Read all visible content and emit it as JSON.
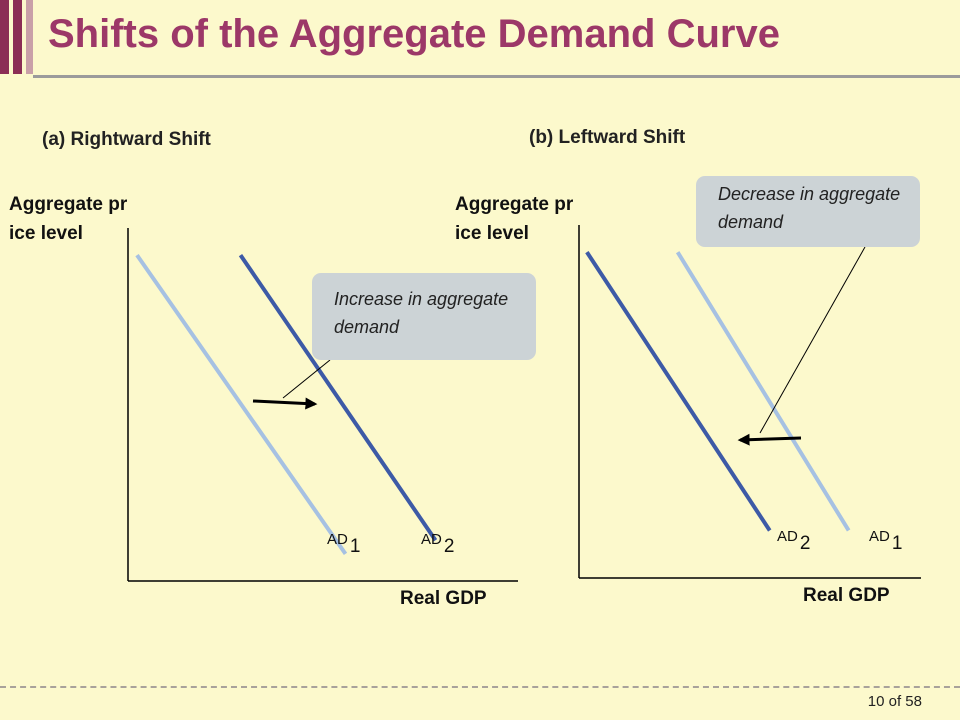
{
  "slide": {
    "title": "Shifts of the Aggregate Demand Curve",
    "slide_number": "10",
    "slide_total_text": "of 58"
  },
  "colors": {
    "title": "#9c3868",
    "accent_bar": "#8b2e55",
    "curve_original": "#a6c1e2",
    "curve_shifted": "#3d5aa6",
    "callout_bg": "#ccd3d6",
    "background": "#fcf9cc"
  },
  "chart_data": [
    {
      "type": "line",
      "title": "(a) Rightward Shift",
      "xlabel": "Real GDP",
      "ylabel": "Aggregate price level",
      "series": [
        {
          "name": "AD",
          "subscript": "1",
          "role": "original",
          "x": [
            0.06,
            1.45
          ],
          "y": [
            2.4,
            0.2
          ]
        },
        {
          "name": "AD",
          "subscript": "2",
          "role": "shifted",
          "x": [
            0.75,
            2.05
          ],
          "y": [
            2.4,
            0.3
          ]
        }
      ],
      "annotation": {
        "text": "Increase in aggregate demand",
        "arrow": "right"
      },
      "xlim": [
        0,
        2.6
      ],
      "ylim": [
        0,
        2.6
      ]
    },
    {
      "type": "line",
      "title": "(b) Leftward Shift",
      "xlabel": "Real GDP",
      "ylabel": "Aggregate price level",
      "series": [
        {
          "name": "AD",
          "subscript": "2",
          "role": "shifted",
          "x": [
            0.06,
            1.45
          ],
          "y": [
            2.4,
            0.35
          ]
        },
        {
          "name": "AD",
          "subscript": "1",
          "role": "original",
          "x": [
            0.75,
            2.05
          ],
          "y": [
            2.4,
            0.35
          ]
        }
      ],
      "annotation": {
        "text": "Decrease in aggregate demand",
        "arrow": "left"
      },
      "xlim": [
        0,
        2.6
      ],
      "ylim": [
        0,
        2.6
      ]
    }
  ]
}
